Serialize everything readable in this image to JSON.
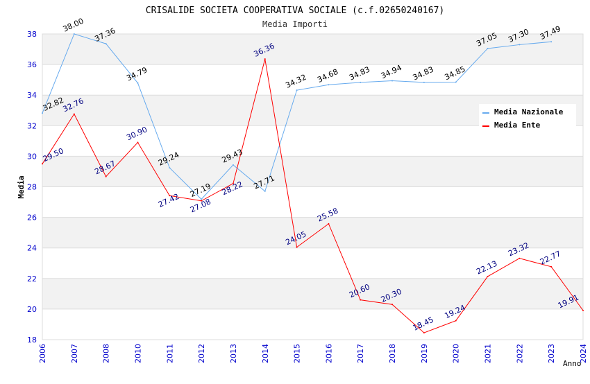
{
  "chart_data": {
    "type": "line",
    "title": "CRISALIDE SOCIETA COOPERATIVA SOCIALE (c.f.02650240167)",
    "subtitle": "Media Importi",
    "xlabel": "Anno",
    "ylabel": "Media",
    "ylim": [
      18,
      38
    ],
    "yticks": [
      18,
      20,
      22,
      24,
      26,
      28,
      30,
      32,
      34,
      36,
      38
    ],
    "categories": [
      "2006",
      "2007",
      "2008",
      "2010",
      "2011",
      "2012",
      "2013",
      "2014",
      "2015",
      "2016",
      "2017",
      "2018",
      "2019",
      "2020",
      "2021",
      "2022",
      "2023",
      "2024"
    ],
    "legend_position": "top-right",
    "series": [
      {
        "name": "Media Nazionale",
        "color": "#66aaee",
        "label_color": "#000000",
        "values": [
          32.82,
          38.0,
          37.36,
          34.79,
          29.24,
          27.19,
          29.43,
          27.71,
          34.32,
          34.68,
          34.83,
          34.94,
          34.83,
          34.85,
          37.05,
          37.3,
          37.49,
          null
        ]
      },
      {
        "name": "Media Ente",
        "color": "#ff0000",
        "label_color": "#000080",
        "values": [
          29.5,
          32.76,
          28.67,
          30.9,
          27.42,
          27.08,
          28.22,
          36.36,
          24.05,
          25.58,
          20.6,
          20.3,
          18.45,
          19.24,
          22.13,
          23.32,
          22.77,
          19.91
        ]
      }
    ]
  }
}
